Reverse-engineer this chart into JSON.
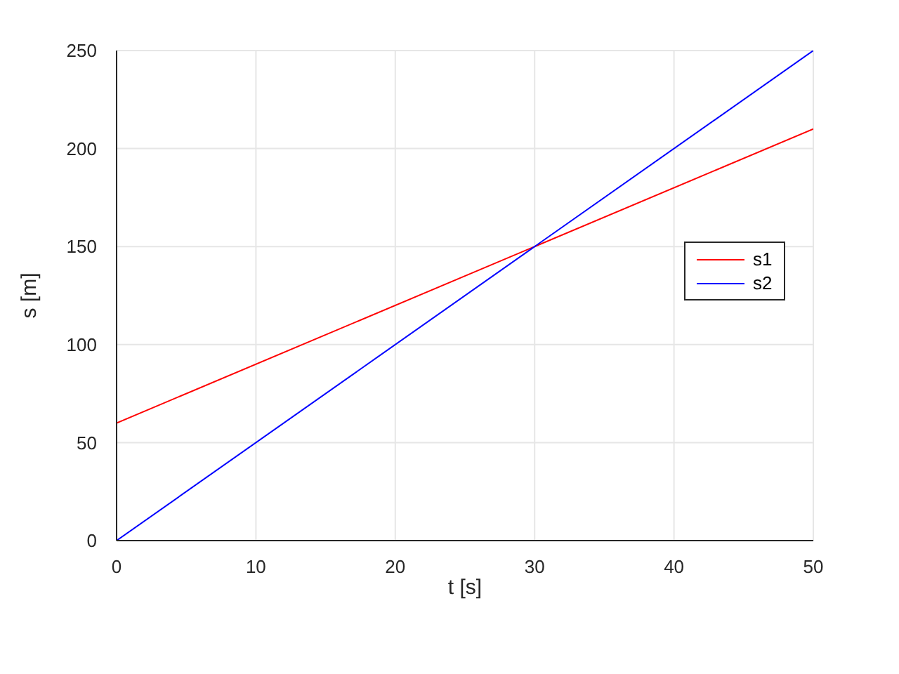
{
  "chart_data": {
    "type": "line",
    "xlabel": "t [s]",
    "ylabel": "s [m]",
    "x": [
      0,
      50
    ],
    "series": [
      {
        "name": "s1",
        "color": "#ff0000",
        "values": [
          60,
          210
        ]
      },
      {
        "name": "s2",
        "color": "#0000ff",
        "values": [
          0,
          250
        ]
      }
    ],
    "xlim": [
      0,
      50
    ],
    "xticks": [
      0,
      10,
      20,
      30,
      40,
      50
    ],
    "ylim": [
      0,
      250
    ],
    "yticks": [
      0,
      50,
      100,
      150,
      200,
      250
    ],
    "grid": true,
    "legend": "right",
    "line_style": "solid",
    "marker": "none"
  }
}
